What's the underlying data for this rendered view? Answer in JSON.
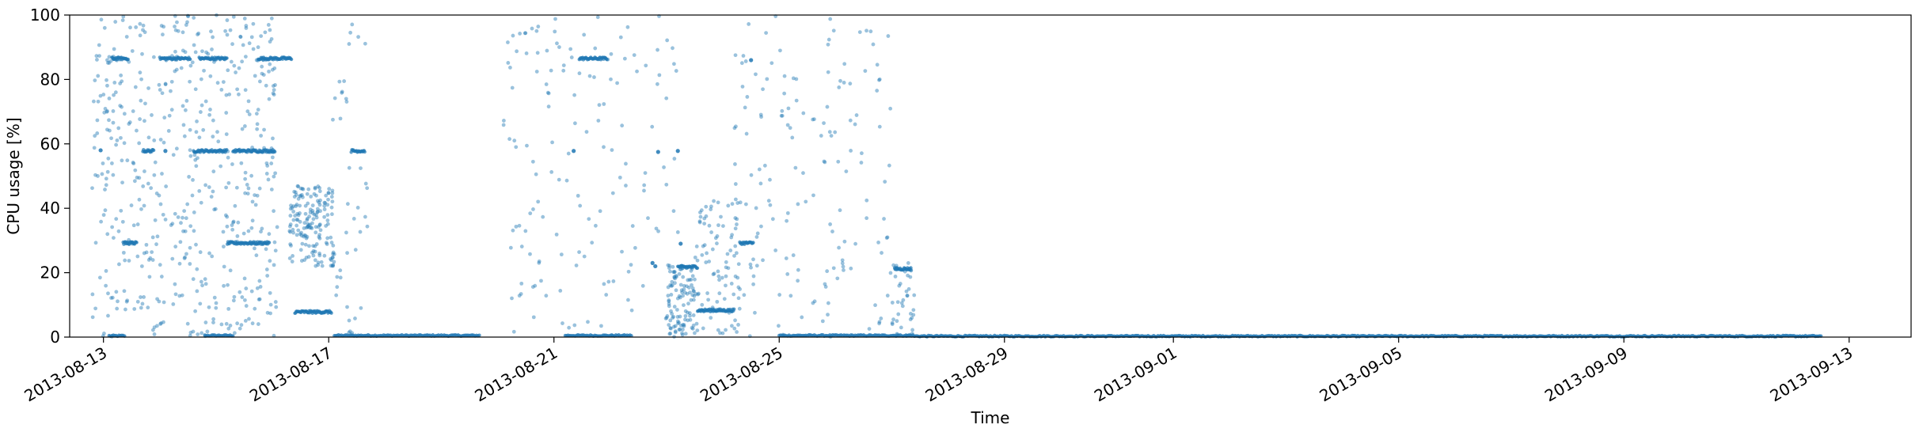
{
  "chart_data": {
    "type": "scatter",
    "title": "",
    "xlabel": "Time",
    "ylabel": "CPU usage [%]",
    "ylim": [
      0,
      100
    ],
    "yticks": [
      0,
      20,
      40,
      60,
      80,
      100
    ],
    "xlim_days": [
      -0.6,
      32.1
    ],
    "x_origin_date": "2013-08-13",
    "xticks": [
      {
        "label": "2013-08-13",
        "day": 0
      },
      {
        "label": "2013-08-17",
        "day": 4
      },
      {
        "label": "2013-08-21",
        "day": 8
      },
      {
        "label": "2013-08-25",
        "day": 12
      },
      {
        "label": "2013-08-29",
        "day": 16
      },
      {
        "label": "2013-09-01",
        "day": 19
      },
      {
        "label": "2013-09-05",
        "day": 23
      },
      {
        "label": "2013-09-09",
        "day": 27
      },
      {
        "label": "2013-09-13",
        "day": 31
      }
    ],
    "color": "#1f77b4",
    "series": [
      {
        "name": "CPU usage",
        "note": "x = days since 2013-08-13, y = CPU usage [%]",
        "baseline_segments": [
          {
            "from": 0.1,
            "to": 0.4,
            "y": 0.2
          },
          {
            "from": 1.8,
            "to": 2.3,
            "y": 0.3
          },
          {
            "from": 4.1,
            "to": 6.7,
            "y": 0.3
          },
          {
            "from": 8.2,
            "to": 9.4,
            "y": 0.3
          },
          {
            "from": 12.0,
            "to": 14.4,
            "y": 0.3
          },
          {
            "from": 14.4,
            "to": 30.5,
            "y": 0.1
          }
        ],
        "dense_bands": [
          {
            "from": 0.15,
            "to": 0.45,
            "y": 86.5
          },
          {
            "from": 1.0,
            "to": 1.55,
            "y": 86.5
          },
          {
            "from": 1.7,
            "to": 2.2,
            "y": 86.5
          },
          {
            "from": 2.75,
            "to": 3.35,
            "y": 86.5
          },
          {
            "from": 8.45,
            "to": 8.95,
            "y": 86.5
          },
          {
            "from": 0.7,
            "to": 0.9,
            "y": 57.8
          },
          {
            "from": 1.6,
            "to": 2.2,
            "y": 57.8
          },
          {
            "from": 2.3,
            "to": 3.05,
            "y": 57.8
          },
          {
            "from": 4.4,
            "to": 4.65,
            "y": 57.8
          },
          {
            "from": 0.35,
            "to": 0.6,
            "y": 29.2
          },
          {
            "from": 2.2,
            "to": 2.95,
            "y": 29.2
          },
          {
            "from": 11.3,
            "to": 11.55,
            "y": 29.2
          },
          {
            "from": 3.4,
            "to": 4.05,
            "y": 7.8
          },
          {
            "from": 10.2,
            "to": 10.55,
            "y": 21.8
          },
          {
            "from": 10.55,
            "to": 11.2,
            "y": 8.3
          },
          {
            "from": 14.05,
            "to": 14.35,
            "y": 21.2
          }
        ],
        "isolated_points": [
          [
            -0.05,
            58.0
          ],
          [
            1.1,
            57.8
          ],
          [
            8.35,
            57.8
          ],
          [
            9.85,
            57.5
          ],
          [
            10.2,
            57.8
          ],
          [
            11.5,
            86.0
          ],
          [
            9.75,
            23.0
          ],
          [
            9.8,
            22.0
          ],
          [
            10.25,
            29.0
          ]
        ],
        "scattered_regions": [
          {
            "from": -0.2,
            "to": 3.1,
            "ymin": 0,
            "ymax": 100,
            "count": 520
          },
          {
            "from": 3.3,
            "to": 4.1,
            "ymin": 22,
            "ymax": 47,
            "count": 170
          },
          {
            "from": 4.0,
            "to": 4.7,
            "ymin": 0,
            "ymax": 100,
            "count": 40
          },
          {
            "from": 7.1,
            "to": 10.3,
            "ymin": 0,
            "ymax": 100,
            "count": 150
          },
          {
            "from": 10.0,
            "to": 10.5,
            "ymin": 0,
            "ymax": 22,
            "count": 110
          },
          {
            "from": 10.5,
            "to": 11.3,
            "ymin": 0,
            "ymax": 43,
            "count": 90
          },
          {
            "from": 11.2,
            "to": 14.0,
            "ymin": 0,
            "ymax": 100,
            "count": 160
          },
          {
            "from": 14.0,
            "to": 14.4,
            "ymin": 0,
            "ymax": 23,
            "count": 40
          }
        ]
      }
    ]
  }
}
